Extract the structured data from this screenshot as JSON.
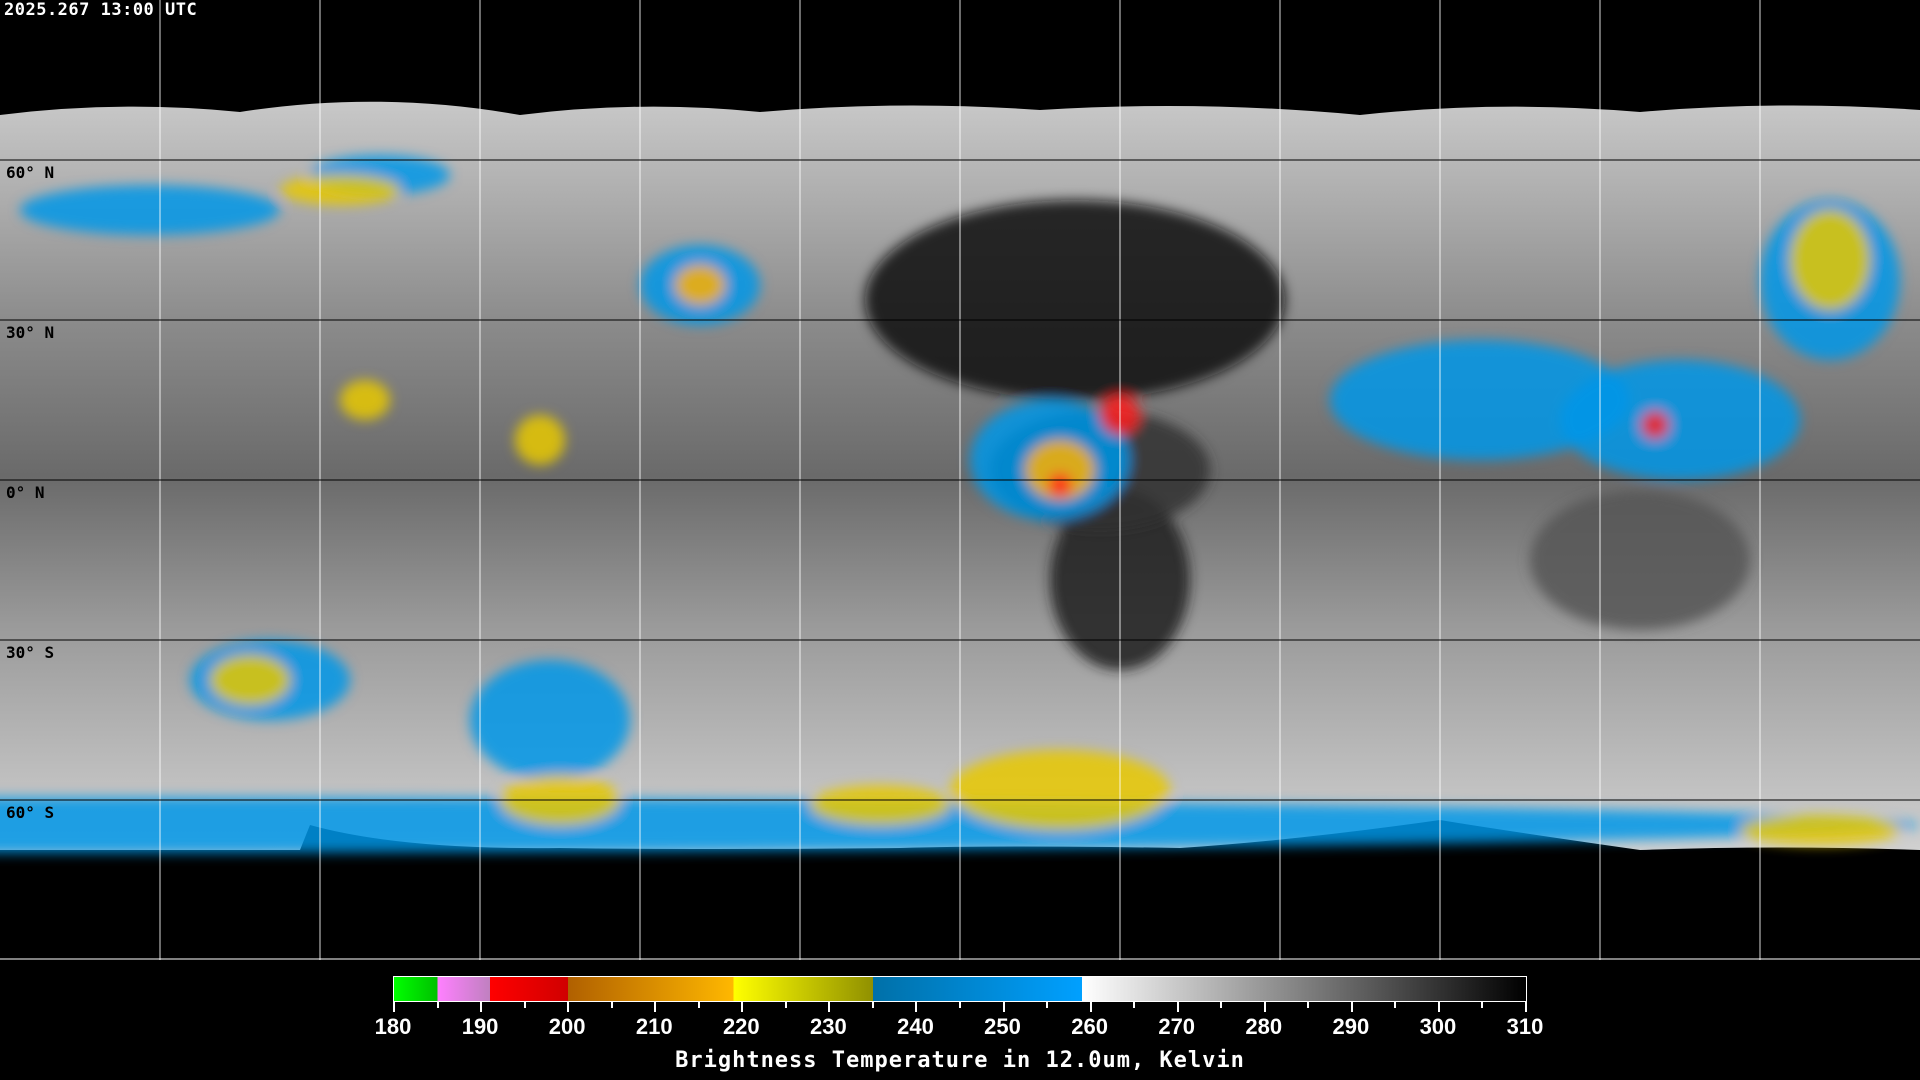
{
  "header": {
    "timestamp": "2025.267 13:00 UTC"
  },
  "map": {
    "projection": "equirectangular",
    "lon_range": [
      -180,
      180
    ],
    "lat_range": [
      -90,
      90
    ],
    "grid_spacing_deg": 30,
    "lat_labels": [
      "60° N",
      "30° N",
      "0° N",
      "30° S",
      "60° S"
    ],
    "colors": {
      "background": "#000000",
      "coastline": "#ffffff",
      "grid": "#ffffff"
    }
  },
  "colorbar": {
    "title": "Brightness Temperature in 12.0um, Kelvin",
    "min": 180,
    "max": 310,
    "tick_labels": [
      "180",
      "190",
      "200",
      "210",
      "220",
      "230",
      "240",
      "250",
      "260",
      "270",
      "280",
      "290",
      "300",
      "310"
    ],
    "segments": [
      {
        "from": 180,
        "to": 185,
        "colors": [
          "#00ff00",
          "#00c000"
        ]
      },
      {
        "from": 185,
        "to": 191,
        "colors": [
          "#ff80ff",
          "#c080c0"
        ]
      },
      {
        "from": 191,
        "to": 200,
        "colors": [
          "#ff0000",
          "#d00000"
        ]
      },
      {
        "from": 200,
        "to": 219,
        "colors": [
          "#b06000",
          "#ffb800"
        ]
      },
      {
        "from": 219,
        "to": 235,
        "colors": [
          "#ffff00",
          "#909000"
        ]
      },
      {
        "from": 235,
        "to": 259,
        "colors": [
          "#0070a8",
          "#00a0ff"
        ]
      },
      {
        "from": 259,
        "to": 310,
        "colors": [
          "#ffffff",
          "#000000"
        ]
      }
    ]
  }
}
